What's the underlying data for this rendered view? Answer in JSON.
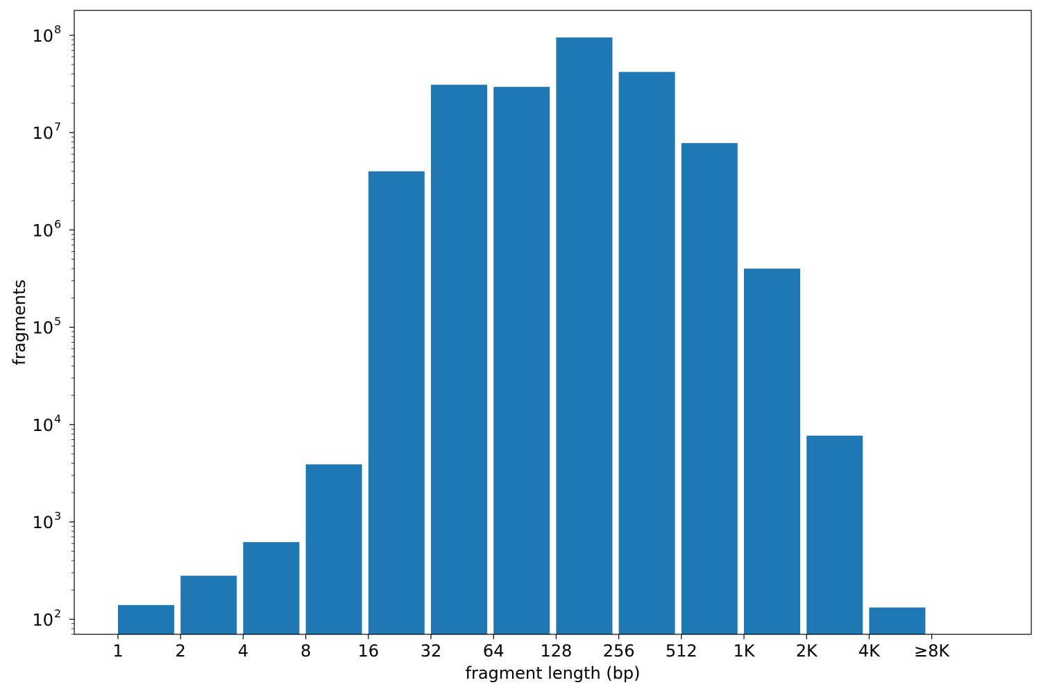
{
  "chart_data": {
    "type": "bar",
    "xlabel": "fragment length (bp)",
    "ylabel": "fragments",
    "yscale": "log",
    "ylim": [
      70,
      180000000
    ],
    "grid": false,
    "legend": "none",
    "bar_color": "#1f77b4",
    "x_ticks": [
      "1",
      "2",
      "4",
      "8",
      "16",
      "32",
      "64",
      "128",
      "256",
      "512",
      "1K",
      "2K",
      "4K",
      "≥8K"
    ],
    "y_ticks": [
      {
        "base": "10",
        "exp": "2",
        "value": 100
      },
      {
        "base": "10",
        "exp": "3",
        "value": 1000
      },
      {
        "base": "10",
        "exp": "4",
        "value": 10000
      },
      {
        "base": "10",
        "exp": "5",
        "value": 100000
      },
      {
        "base": "10",
        "exp": "6",
        "value": 1000000
      },
      {
        "base": "10",
        "exp": "7",
        "value": 10000000
      },
      {
        "base": "10",
        "exp": "8",
        "value": 100000000
      }
    ],
    "bins": [
      {
        "from": "1",
        "to": "2",
        "value": 140
      },
      {
        "from": "2",
        "to": "4",
        "value": 280
      },
      {
        "from": "4",
        "to": "8",
        "value": 620
      },
      {
        "from": "8",
        "to": "16",
        "value": 3900
      },
      {
        "from": "16",
        "to": "32",
        "value": 4000000
      },
      {
        "from": "32",
        "to": "64",
        "value": 31000000
      },
      {
        "from": "64",
        "to": "128",
        "value": 29500000
      },
      {
        "from": "128",
        "to": "256",
        "value": 95000000
      },
      {
        "from": "256",
        "to": "512",
        "value": 42000000
      },
      {
        "from": "512",
        "to": "1K",
        "value": 7800000
      },
      {
        "from": "1K",
        "to": "2K",
        "value": 400000
      },
      {
        "from": "2K",
        "to": "4K",
        "value": 7700
      },
      {
        "from": "4K",
        "to": "≥8K",
        "value": 132
      }
    ]
  }
}
